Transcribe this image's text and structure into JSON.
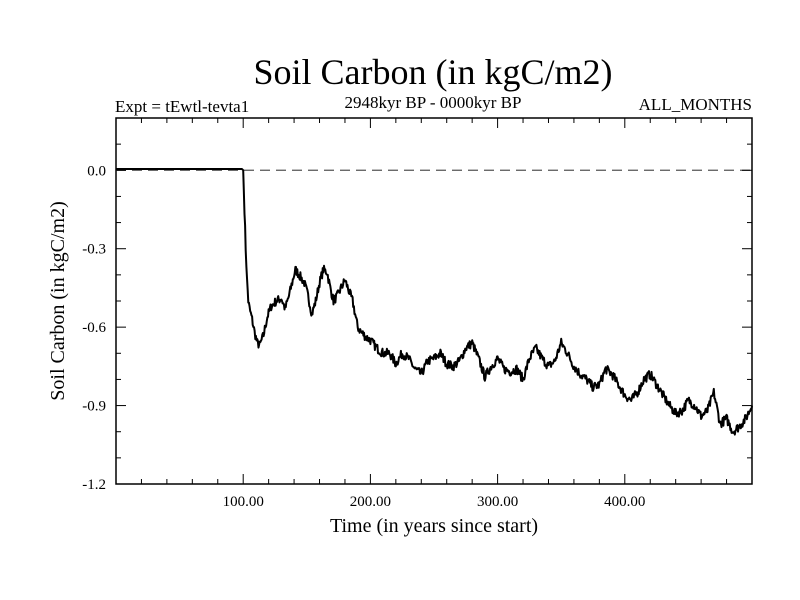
{
  "chart_data": {
    "type": "line",
    "title": "Soil Carbon (in kgC/m2)",
    "subtitle_left": "Expt = tEwtl-tevta1",
    "subtitle_center": "2948kyr BP - 0000kyr BP",
    "subtitle_right": "ALL_MONTHS",
    "xlabel": "Time (in years since start)",
    "ylabel": "Soil Carbon (in kgC/m2)",
    "xlim": [
      0,
      500
    ],
    "ylim": [
      -1.2,
      0.2
    ],
    "x_ticks": [
      100,
      200,
      300,
      400
    ],
    "x_tick_labels": [
      "100.00",
      "200.00",
      "300.00",
      "400.00"
    ],
    "y_ticks": [
      0.0,
      -0.3,
      -0.6,
      -0.9,
      -1.2
    ],
    "y_tick_labels": [
      "0.0",
      "-0.3",
      "-0.6",
      "-0.9",
      "-1.2"
    ],
    "reference_line": {
      "y": 0.0,
      "style": "dashed"
    },
    "series": [
      {
        "name": "Soil Carbon",
        "color": "#000000",
        "x": [
          0,
          99,
          100,
          101,
          102,
          103,
          104,
          105,
          107,
          109,
          111,
          113,
          116,
          119,
          122,
          126,
          130,
          133,
          136,
          139,
          141,
          144,
          148,
          151,
          154,
          157,
          160,
          163,
          166,
          168,
          171,
          174,
          177,
          180,
          183,
          186,
          188,
          190,
          193,
          197,
          200,
          205,
          210,
          215,
          220,
          225,
          230,
          235,
          240,
          245,
          250,
          255,
          260,
          265,
          270,
          275,
          280,
          285,
          290,
          295,
          300,
          305,
          310,
          315,
          320,
          325,
          330,
          335,
          340,
          345,
          350,
          355,
          360,
          365,
          370,
          375,
          380,
          385,
          390,
          395,
          400,
          405,
          410,
          415,
          420,
          425,
          430,
          435,
          440,
          445,
          450,
          455,
          460,
          465,
          470,
          475,
          480,
          485,
          490,
          495,
          500
        ],
        "y": [
          0.005,
          0.005,
          0.0,
          -0.15,
          -0.3,
          -0.42,
          -0.5,
          -0.53,
          -0.57,
          -0.62,
          -0.66,
          -0.67,
          -0.63,
          -0.56,
          -0.52,
          -0.5,
          -0.49,
          -0.53,
          -0.48,
          -0.42,
          -0.38,
          -0.4,
          -0.43,
          -0.48,
          -0.55,
          -0.5,
          -0.43,
          -0.38,
          -0.39,
          -0.44,
          -0.5,
          -0.48,
          -0.45,
          -0.42,
          -0.46,
          -0.5,
          -0.55,
          -0.6,
          -0.62,
          -0.64,
          -0.65,
          -0.68,
          -0.7,
          -0.7,
          -0.74,
          -0.7,
          -0.72,
          -0.76,
          -0.78,
          -0.73,
          -0.72,
          -0.7,
          -0.74,
          -0.75,
          -0.73,
          -0.68,
          -0.66,
          -0.72,
          -0.79,
          -0.75,
          -0.72,
          -0.76,
          -0.77,
          -0.76,
          -0.8,
          -0.72,
          -0.68,
          -0.72,
          -0.75,
          -0.73,
          -0.66,
          -0.7,
          -0.75,
          -0.78,
          -0.8,
          -0.83,
          -0.82,
          -0.76,
          -0.78,
          -0.82,
          -0.86,
          -0.88,
          -0.85,
          -0.8,
          -0.78,
          -0.82,
          -0.86,
          -0.9,
          -0.93,
          -0.92,
          -0.88,
          -0.9,
          -0.94,
          -0.92,
          -0.85,
          -0.97,
          -0.95,
          -1.0,
          -0.98,
          -0.95,
          -0.9
        ]
      }
    ]
  }
}
